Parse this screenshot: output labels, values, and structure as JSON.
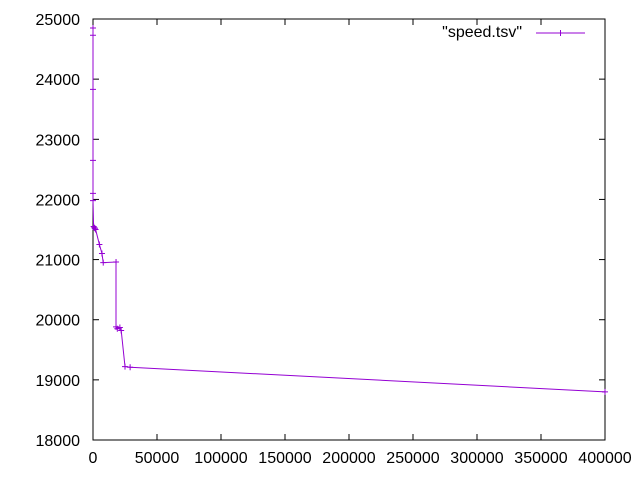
{
  "chart_data": {
    "type": "line",
    "title": "",
    "xlabel": "",
    "ylabel": "",
    "xlim": [
      0,
      400000
    ],
    "ylim": [
      18000,
      25000
    ],
    "xticks": [
      0,
      50000,
      100000,
      150000,
      200000,
      250000,
      300000,
      350000,
      400000
    ],
    "yticks": [
      18000,
      19000,
      20000,
      21000,
      22000,
      23000,
      24000,
      25000
    ],
    "grid": false,
    "legend_position": "top-right",
    "series": [
      {
        "name": "\"speed.tsv\"",
        "color": "#9400d3",
        "x": [
          0,
          0,
          0,
          0,
          0,
          0,
          500,
          1000,
          1500,
          2000,
          5000,
          7000,
          8000,
          18000,
          18000,
          19000,
          21000,
          22000,
          25000,
          29000,
          400000
        ],
        "y": [
          24850,
          24730,
          23830,
          22650,
          22100,
          21980,
          21550,
          21530,
          21520,
          21500,
          21250,
          21100,
          20950,
          20960,
          19880,
          19850,
          19870,
          19820,
          19220,
          19210,
          18800
        ]
      }
    ]
  }
}
